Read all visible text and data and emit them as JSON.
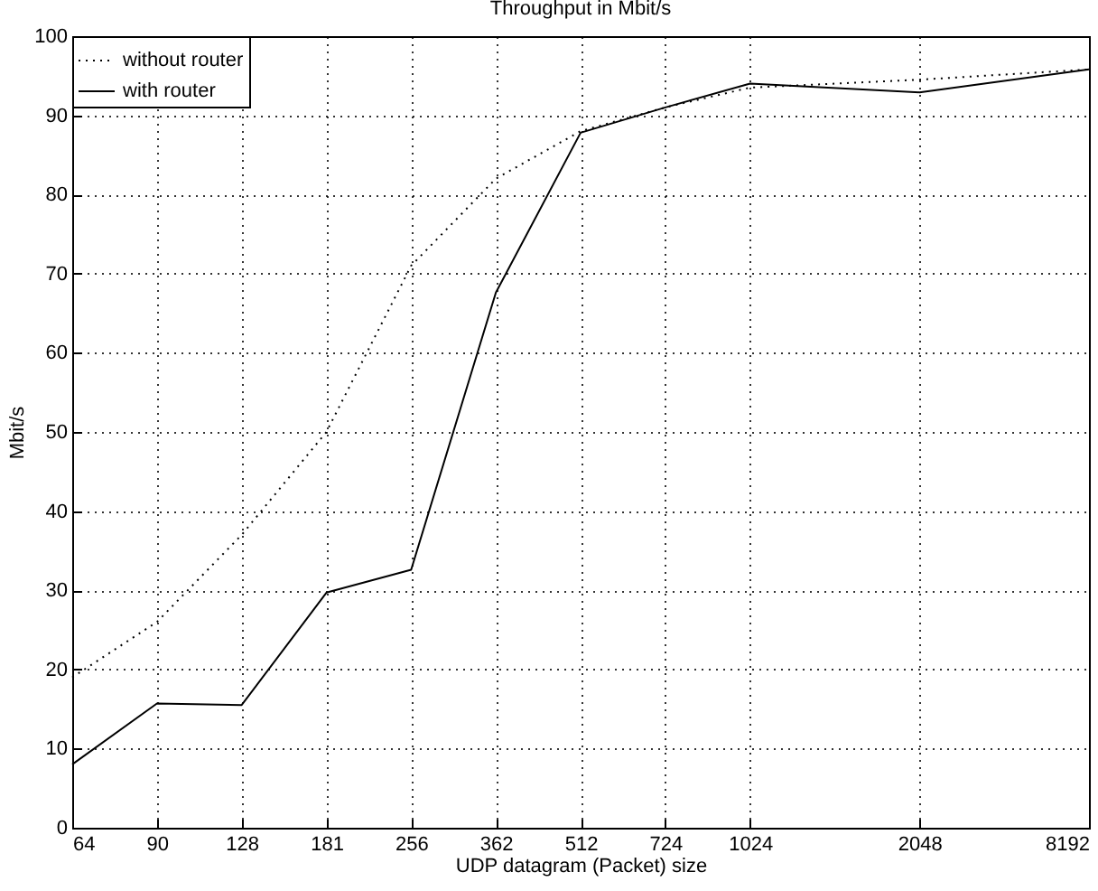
{
  "chart_data": {
    "type": "line",
    "title": "Throughput in Mbit/s",
    "xlabel": "UDP datagram (Packet) size",
    "ylabel": "Mbit/s",
    "categories": [
      "64",
      "90",
      "128",
      "181",
      "256",
      "362",
      "512",
      "724",
      "1024",
      null,
      "2048",
      null,
      "8192"
    ],
    "ylim": [
      0,
      100
    ],
    "yticks": [
      0,
      10,
      20,
      30,
      40,
      50,
      60,
      70,
      80,
      90,
      100
    ],
    "series": [
      {
        "name": "without router",
        "color": "#000000",
        "line_style": "dotted",
        "values": [
          19,
          26,
          37,
          50,
          71,
          82,
          88,
          91,
          93.5,
          null,
          94.5,
          null,
          95.8
        ]
      },
      {
        "name": "with router",
        "color": "#000000",
        "line_style": "solid",
        "values": [
          8,
          15.7,
          15.5,
          29.7,
          32.6,
          67.6,
          87.8,
          91,
          94,
          null,
          92.9,
          null,
          95.8
        ]
      }
    ],
    "grid": true,
    "legend": "top left",
    "marker": "none"
  }
}
